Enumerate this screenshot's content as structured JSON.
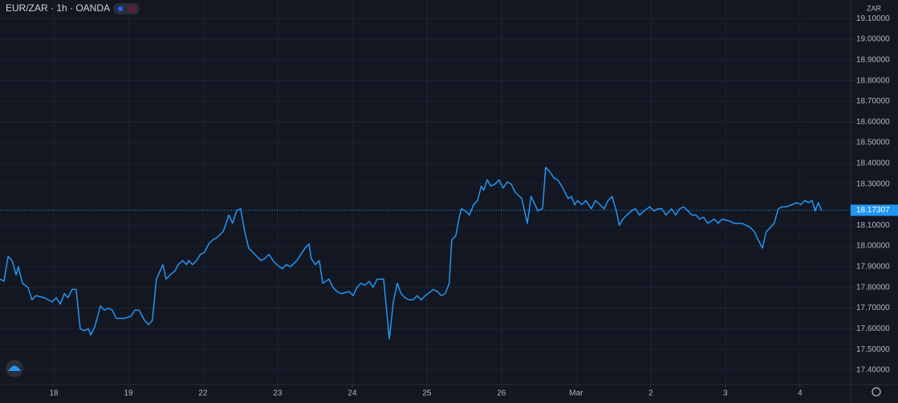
{
  "chart_data": {
    "type": "line",
    "title": "EUR/ZAR · 1h · OANDA",
    "currency": "ZAR",
    "color": "#2196f3",
    "grid": true,
    "x": [
      -17.3,
      -16.0,
      -14.7,
      -13.4,
      -12.1,
      -11.4,
      -10.1,
      -8.3,
      -7.0,
      -5.7,
      -3.1,
      -0.5,
      0.8,
      2.1,
      3.4,
      4.6,
      5.9,
      7.2,
      8.5,
      9.8,
      11.1,
      11.9,
      13.2,
      15.0,
      16.3,
      17.5,
      18.8,
      20.1,
      22.7,
      24.8,
      26.1,
      27.4,
      29.2,
      30.5,
      31.7,
      33.0,
      35.1,
      36.1,
      37.4,
      39.0,
      40.0,
      41.5,
      42.6,
      43.4,
      44.6,
      45.9,
      47.2,
      48.5,
      49.8,
      51.1,
      52.4,
      54.5,
      56.3,
      57.5,
      58.8,
      60.1,
      61.4,
      62.7,
      64.0,
      65.3,
      66.6,
      67.9,
      69.2,
      70.5,
      71.7,
      73.5,
      74.8,
      76.1,
      78.2,
      79.5,
      80.8,
      82.1,
      82.8,
      84.1,
      85.4,
      86.5,
      88.5,
      89.8,
      91.1,
      92.4,
      95.0,
      96.3,
      97.5,
      98.8,
      100.1,
      101.4,
      102.7,
      104.0,
      106.1,
      107.9,
      109.2,
      110.5,
      111.7,
      113.0,
      114.3,
      115.6,
      116.9,
      118.2,
      119.5,
      122.1,
      123.4,
      124.6,
      125.9,
      127.2,
      128.0,
      129.3,
      130.3,
      131.1,
      132.4,
      133.7,
      135.0,
      136.3,
      137.5,
      138.3,
      139.4,
      140.6,
      141.9,
      143.2,
      144.5,
      145.8,
      147.1,
      148.4,
      150.5,
      152.3,
      153.5,
      154.8,
      155.6,
      157.2,
      158.2,
      159.5,
      160.8,
      162.1,
      163.4,
      165.4,
      166.5,
      167.5,
      168.5,
      169.8,
      171.1,
      172.9,
      174.2,
      175.7,
      177.0,
      178.3,
      179.6,
      180.9,
      181.9,
      183.0,
      184.3,
      185.8,
      187.1,
      188.4,
      189.9,
      191.7,
      193.0,
      194.3,
      195.6,
      196.9,
      198.7,
      200.0,
      201.3,
      202.6,
      203.9,
      205.2,
      206.5,
      207.7,
      209.0,
      210.3,
      212.4,
      213.7,
      215.0,
      217.5,
      218.8,
      221.4,
      222.7,
      224.0,
      225.3,
      226.6,
      227.9,
      229.2,
      230.5,
      231.7,
      233.0,
      234.3,
      235.6,
      237.4,
      239.0,
      240.3,
      241.5,
      242.8,
      243.9,
      244.9,
      245.9,
      247.0
    ],
    "values": [
      17.84,
      17.83,
      17.95,
      17.93,
      17.86,
      17.9,
      17.82,
      17.8,
      17.74,
      17.76,
      17.75,
      17.73,
      17.75,
      17.72,
      17.77,
      17.75,
      17.79,
      17.79,
      17.6,
      17.59,
      17.6,
      17.57,
      17.61,
      17.71,
      17.69,
      17.7,
      17.69,
      17.65,
      17.65,
      17.66,
      17.69,
      17.69,
      17.64,
      17.62,
      17.64,
      17.84,
      17.91,
      17.84,
      17.86,
      17.88,
      17.91,
      17.93,
      17.91,
      17.93,
      17.91,
      17.93,
      17.96,
      17.97,
      18.01,
      18.03,
      18.04,
      18.07,
      18.15,
      18.11,
      18.17,
      18.18,
      18.07,
      17.99,
      17.97,
      17.95,
      17.93,
      17.94,
      17.96,
      17.93,
      17.91,
      17.89,
      17.91,
      17.9,
      17.93,
      17.96,
      17.99,
      18.01,
      17.94,
      17.91,
      17.93,
      17.82,
      17.84,
      17.8,
      17.78,
      17.77,
      17.78,
      17.76,
      17.8,
      17.82,
      17.81,
      17.83,
      17.8,
      17.84,
      17.84,
      17.55,
      17.73,
      17.82,
      17.77,
      17.75,
      17.74,
      17.74,
      17.76,
      17.74,
      17.76,
      17.79,
      17.78,
      17.76,
      17.77,
      17.82,
      18.03,
      18.05,
      18.13,
      18.18,
      18.17,
      18.15,
      18.2,
      18.22,
      18.29,
      18.27,
      18.32,
      18.29,
      18.3,
      18.32,
      18.28,
      18.31,
      18.3,
      18.26,
      18.23,
      18.11,
      18.24,
      18.2,
      18.17,
      18.18,
      18.38,
      18.36,
      18.33,
      18.32,
      18.29,
      18.23,
      18.24,
      18.2,
      18.22,
      18.2,
      18.22,
      18.18,
      18.22,
      18.2,
      18.18,
      18.22,
      18.24,
      18.17,
      18.1,
      18.13,
      18.15,
      18.17,
      18.18,
      18.15,
      18.17,
      18.19,
      18.17,
      18.18,
      18.18,
      18.15,
      18.18,
      18.15,
      18.18,
      18.19,
      18.17,
      18.15,
      18.15,
      18.13,
      18.14,
      18.11,
      18.13,
      18.11,
      18.13,
      18.12,
      18.11,
      18.11,
      18.1,
      18.09,
      18.07,
      18.03,
      17.99,
      18.07,
      18.09,
      18.11,
      18.18,
      18.19,
      18.19,
      18.2,
      18.21,
      18.2,
      18.22,
      18.21,
      18.22,
      18.17,
      18.21,
      18.17
    ],
    "last_value": 18.17307,
    "xlim": [
      -17.3,
      256.3
    ],
    "xticks": [
      {
        "value": 0,
        "label": "18"
      },
      {
        "value": 24,
        "label": "19"
      },
      {
        "value": 48,
        "label": "22"
      },
      {
        "value": 72,
        "label": "23"
      },
      {
        "value": 96,
        "label": "24"
      },
      {
        "value": 120,
        "label": "25"
      },
      {
        "value": 144,
        "label": "26"
      },
      {
        "value": 168,
        "label": "Mar"
      },
      {
        "value": 192,
        "label": "2"
      },
      {
        "value": 216,
        "label": "3"
      },
      {
        "value": 240,
        "label": "4"
      }
    ],
    "ylim": [
      17.33,
      19.19
    ],
    "yticks": [
      {
        "value": 17.4,
        "label": "17.40000"
      },
      {
        "value": 17.5,
        "label": "17.50000"
      },
      {
        "value": 17.6,
        "label": "17.60000"
      },
      {
        "value": 17.7,
        "label": "17.70000"
      },
      {
        "value": 17.8,
        "label": "17.80000"
      },
      {
        "value": 17.9,
        "label": "17.90000"
      },
      {
        "value": 18.0,
        "label": "18.00000"
      },
      {
        "value": 18.1,
        "label": "18.10000"
      },
      {
        "value": 18.3,
        "label": "18.30000"
      },
      {
        "value": 18.4,
        "label": "18.40000"
      },
      {
        "value": 18.5,
        "label": "18.50000"
      },
      {
        "value": 18.6,
        "label": "18.60000"
      },
      {
        "value": 18.7,
        "label": "18.70000"
      },
      {
        "value": 18.8,
        "label": "18.80000"
      },
      {
        "value": 18.9,
        "label": "18.90000"
      },
      {
        "value": 19.0,
        "label": "19.00000"
      },
      {
        "value": 19.1,
        "label": "19.10000"
      }
    ]
  }
}
